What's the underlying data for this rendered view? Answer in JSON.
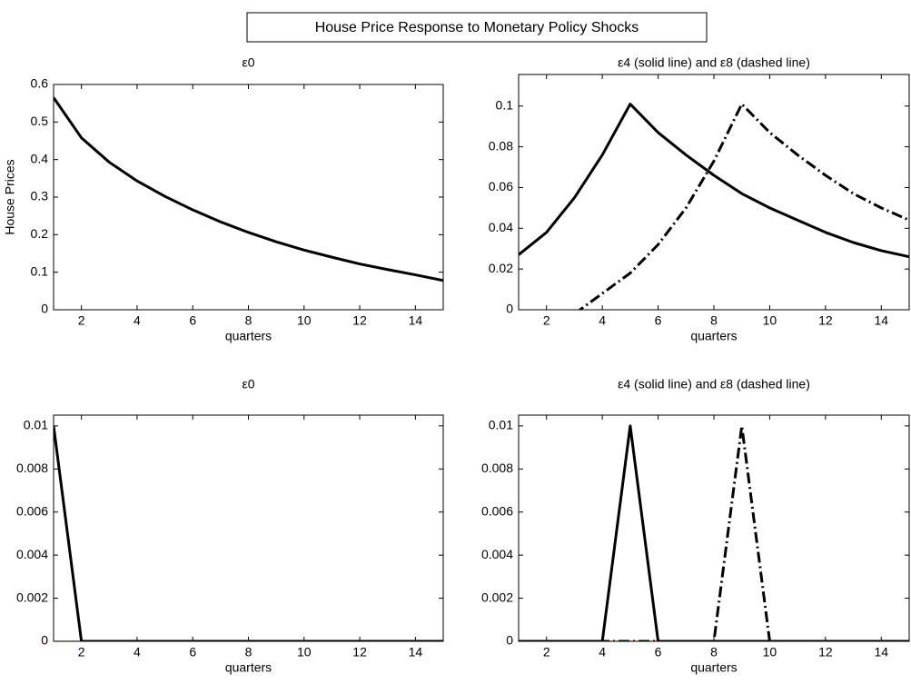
{
  "title": "House Price Response to Monetary Policy Shocks",
  "chart_data": [
    {
      "type": "line",
      "title": "ε0",
      "xlabel": "quarters",
      "ylabel": "House Prices",
      "x": [
        1,
        2,
        3,
        4,
        5,
        6,
        7,
        8,
        9,
        10,
        11,
        12,
        13,
        14,
        15
      ],
      "xlim": [
        1,
        15
      ],
      "xticks": [
        2,
        4,
        6,
        8,
        10,
        12,
        14
      ],
      "ylim": [
        0,
        0.6
      ],
      "yticks": [
        0,
        0.1,
        0.2,
        0.3,
        0.4,
        0.5,
        0.6
      ],
      "series": [
        {
          "color": "#000000",
          "linestyle": "solid",
          "values": [
            0.565,
            0.458,
            0.393,
            0.343,
            0.302,
            0.266,
            0.234,
            0.206,
            0.181,
            0.159,
            0.14,
            0.122,
            0.107,
            0.093,
            0.078
          ]
        }
      ]
    },
    {
      "type": "line",
      "title": "ε4 (solid line)  and ε8 (dashed line)",
      "xlabel": "quarters",
      "x": [
        1,
        2,
        3,
        4,
        5,
        6,
        7,
        8,
        9,
        10,
        11,
        12,
        13,
        14,
        15
      ],
      "xlim": [
        1,
        15
      ],
      "xticks": [
        2,
        4,
        6,
        8,
        10,
        12,
        14
      ],
      "ylim": [
        0,
        0.1155
      ],
      "yticks": [
        0,
        0.02,
        0.04,
        0.06,
        0.08,
        0.1
      ],
      "series": [
        {
          "color": "#000000",
          "linestyle": "solid",
          "values": [
            0.027,
            0.038,
            0.055,
            0.076,
            0.101,
            0.087,
            0.076,
            0.066,
            0.057,
            0.05,
            0.044,
            0.038,
            0.033,
            0.029,
            0.026
          ]
        },
        {
          "color": "#000000",
          "linestyle": "dashdot",
          "values": [
            null,
            null,
            -0.002,
            0.008,
            0.018,
            0.032,
            0.05,
            0.073,
            0.101,
            0.087,
            0.076,
            0.066,
            0.057,
            0.05,
            0.044
          ]
        }
      ]
    },
    {
      "type": "line",
      "title": "ε0",
      "xlabel": "quarters",
      "x": [
        1,
        2,
        3,
        4,
        5,
        6,
        7,
        8,
        9,
        10,
        11,
        12,
        13,
        14,
        15
      ],
      "xlim": [
        1,
        15
      ],
      "xticks": [
        2,
        4,
        6,
        8,
        10,
        12,
        14
      ],
      "ylim": [
        0,
        0.0105
      ],
      "yticks": [
        0,
        0.002,
        0.004,
        0.006,
        0.008,
        0.01
      ],
      "series": [
        {
          "color": "#cc0000",
          "linestyle": "thin",
          "values": [
            0,
            0,
            0,
            0,
            0,
            0,
            0,
            0,
            0,
            0,
            0,
            0,
            0,
            0,
            0
          ]
        },
        {
          "color": "#000000",
          "linestyle": "solid",
          "values": [
            0.01,
            0,
            0,
            0,
            0,
            0,
            0,
            0,
            0,
            0,
            0,
            0,
            0,
            0,
            0
          ]
        }
      ]
    },
    {
      "type": "line",
      "title": "ε4 (solid line)  and ε8 (dashed line)",
      "xlabel": "quarters",
      "x": [
        1,
        2,
        3,
        4,
        5,
        6,
        7,
        8,
        9,
        10,
        11,
        12,
        13,
        14,
        15
      ],
      "xlim": [
        1,
        15
      ],
      "xticks": [
        2,
        4,
        6,
        8,
        10,
        12,
        14
      ],
      "ylim": [
        0,
        0.0105
      ],
      "yticks": [
        0,
        0.002,
        0.004,
        0.006,
        0.008,
        0.01
      ],
      "series": [
        {
          "color": "#cc0000",
          "linestyle": "thin",
          "values": [
            0,
            0,
            0,
            0,
            0,
            0,
            0,
            0,
            0,
            0,
            0,
            0,
            0,
            0,
            0
          ]
        },
        {
          "color": "#000000",
          "linestyle": "solid",
          "values": [
            0,
            0,
            0,
            0,
            0.01,
            0,
            0,
            0,
            0,
            0,
            0,
            0,
            0,
            0,
            0
          ]
        },
        {
          "color": "#000000",
          "linestyle": "dashdot",
          "values": [
            0,
            0,
            0,
            0,
            0,
            0,
            0,
            0,
            0.01,
            0,
            0,
            0,
            0,
            0,
            0
          ]
        }
      ]
    }
  ]
}
